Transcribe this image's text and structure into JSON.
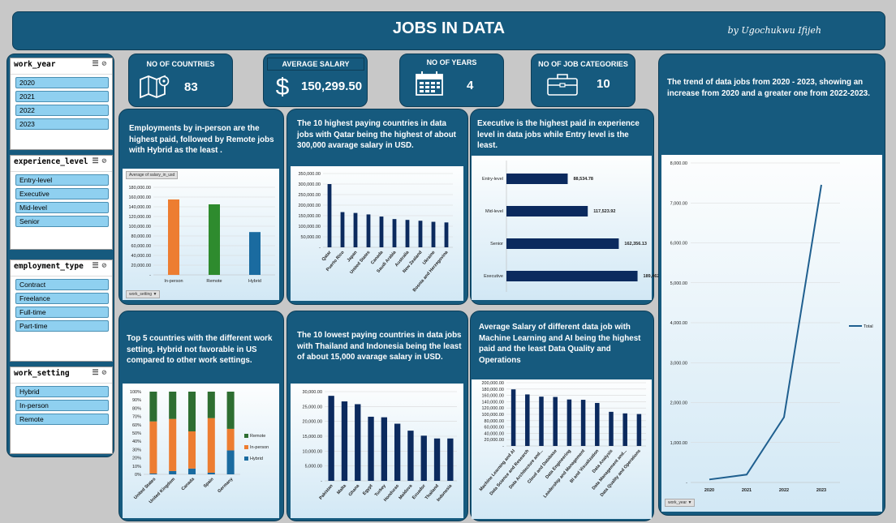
{
  "title": "JOBS IN DATA",
  "signature": "by Ugochukwu Ifijeh",
  "colors": {
    "dark_panel": "#165a7e",
    "bar_navy": "#0b2a5e",
    "orange": "#ed7d31",
    "green": "#2e7d32",
    "teal": "#1a6ba0",
    "slicer_item": "#8fd0f0"
  },
  "slicers": [
    {
      "name": "work_year",
      "items": [
        "2020",
        "2021",
        "2022",
        "2023"
      ]
    },
    {
      "name": "experience_level",
      "items": [
        "Entry-level",
        "Executive",
        "Mid-level",
        "Senior"
      ]
    },
    {
      "name": "employment_type",
      "items": [
        "Contract",
        "Freelance",
        "Full-time",
        "Part-time"
      ]
    },
    {
      "name": "work_setting",
      "items": [
        "Hybrid",
        "In-person",
        "Remote"
      ]
    }
  ],
  "kpis": {
    "countries": {
      "label": "NO OF COUNTRIES",
      "value": "83",
      "icon": "map-icon"
    },
    "salary": {
      "label": "AVERAGE SALARY",
      "value": "150,299.50",
      "icon": "dollar-icon"
    },
    "years": {
      "label": "NO OF YEARS",
      "value": "4",
      "icon": "calendar-icon"
    },
    "categories": {
      "label": "NO OF JOB CATEGORIES",
      "value": "10",
      "icon": "briefcase-icon"
    }
  },
  "texts": {
    "work_setting": "Employments by in-person are the highest paid, followed by Remote jobs with Hybrid as the least .",
    "top10": "The 10 highest paying countries in data jobs with Qatar being the highest of about 300,000 avarage salary in USD.",
    "experience": "Executive is the highest paid in experience level in data jobs while Entry level is the least.",
    "trend": "The trend of data jobs from 2020 - 2023, showing an increase from 2020 and a greater one from 2022-2023.",
    "top5": "Top 5 countries with the different work setting. Hybrid not favorable in US compared to other work settings.",
    "bottom10": "The 10 lowest paying countries in data jobs with Thailand and  Indonesia being the least of about 15,000 avarage salary in USD.",
    "categories": "Average Salary of different data job with Machine Learning and AI being the highest paid and the least Data Quality and Operations"
  },
  "pivot_buttons": {
    "avg_salary": "Average of salary_in_usd",
    "work_setting": "work_setting",
    "work_year": "work_year"
  },
  "chart_data": [
    {
      "type": "bar",
      "categories": [
        "In-person",
        "Remote",
        "Hybrid"
      ],
      "values": [
        155000,
        145000,
        88000
      ],
      "ylim": [
        0,
        180000
      ],
      "yticks": [
        "20,000.00",
        "40,000.00",
        "60,000.00",
        "80,000.00",
        "100,000.00",
        "120,000.00",
        "140,000.00",
        "160,000.00",
        "180,000.00"
      ],
      "colors": [
        "#ed7d31",
        "#2e8b2e",
        "#1a6ba0"
      ]
    },
    {
      "type": "bar",
      "categories": [
        "Qatar",
        "Puerto Rico",
        "Japan",
        "United States",
        "Canada",
        "Saudi Arabia",
        "Australia",
        "New Zealand",
        "Ukraine",
        "Bosnia and Herzegovina"
      ],
      "values": [
        300000,
        167000,
        163000,
        156000,
        146000,
        134000,
        130000,
        126000,
        121000,
        118000
      ],
      "ylim": [
        0,
        350000
      ],
      "yticks": [
        "50,000.00",
        "100,000.00",
        "150,000.00",
        "200,000.00",
        "250,000.00",
        "300,000.00",
        "350,000.00"
      ]
    },
    {
      "type": "bar",
      "orientation": "horizontal",
      "categories": [
        "Entry-level",
        "Mid-level",
        "Senior",
        "Executive"
      ],
      "values": [
        88534.78,
        117523.92,
        162356.13,
        189462.91
      ],
      "labels": [
        "88,534.78",
        "117,523.92",
        "162,356.13",
        "189,462.91"
      ]
    },
    {
      "type": "line",
      "x": [
        "2020",
        "2021",
        "2022",
        "2023"
      ],
      "values": [
        75,
        197,
        1634,
        7453
      ],
      "ylim": [
        0,
        8000
      ],
      "yticks": [
        "1,000.00",
        "2,000.00",
        "3,000.00",
        "4,000.00",
        "5,000.00",
        "6,000.00",
        "7,000.00",
        "8,000.00"
      ],
      "legend": "Total"
    },
    {
      "type": "bar",
      "stacked": true,
      "categories": [
        "United States",
        "United Kingdom",
        "Canada",
        "Spain",
        "Germany"
      ],
      "series": [
        {
          "name": "Hybrid",
          "values": [
            1,
            4,
            7,
            2,
            29
          ]
        },
        {
          "name": "In-person",
          "values": [
            63,
            63,
            45,
            66,
            26
          ]
        },
        {
          "name": "Remote",
          "values": [
            36,
            33,
            48,
            32,
            45
          ]
        }
      ],
      "yticks": [
        "0%",
        "10%",
        "20%",
        "30%",
        "40%",
        "50%",
        "60%",
        "70%",
        "80%",
        "90%",
        "100%"
      ]
    },
    {
      "type": "bar",
      "categories": [
        "Pakistan",
        "Malta",
        "Ghana",
        "Egypt",
        "Turkey",
        "Honduras",
        "Moldova",
        "Ecuador",
        "Thailand",
        "Indonesia"
      ],
      "values": [
        30500,
        28500,
        27500,
        23000,
        22800,
        20500,
        18000,
        16200,
        15200,
        15200
      ],
      "ylim": [
        0,
        32000
      ],
      "yticks": [
        "5,000.00",
        "10,000.00",
        "15,000.00",
        "20,000.00",
        "25,000.00",
        "30,000.00"
      ]
    },
    {
      "type": "bar",
      "categories": [
        "Machine Learning and AI",
        "Data Science and Research",
        "Data Architecture and...",
        "Cloud and Database",
        "Data Engineering",
        "Leadership and Management",
        "BI and Visualization",
        "Data Analysis",
        "Data Management and...",
        "Data Quality and Operations"
      ],
      "values": [
        179000,
        163000,
        156000,
        155000,
        147000,
        146000,
        136000,
        108000,
        103000,
        101000
      ],
      "ylim": [
        0,
        200000
      ],
      "yticks": [
        "20,000.00",
        "40,000.00",
        "60,000.00",
        "80,000.00",
        "100,000.00",
        "120,000.00",
        "140,000.00",
        "160,000.00",
        "180,000.00",
        "200,000.00"
      ]
    }
  ]
}
